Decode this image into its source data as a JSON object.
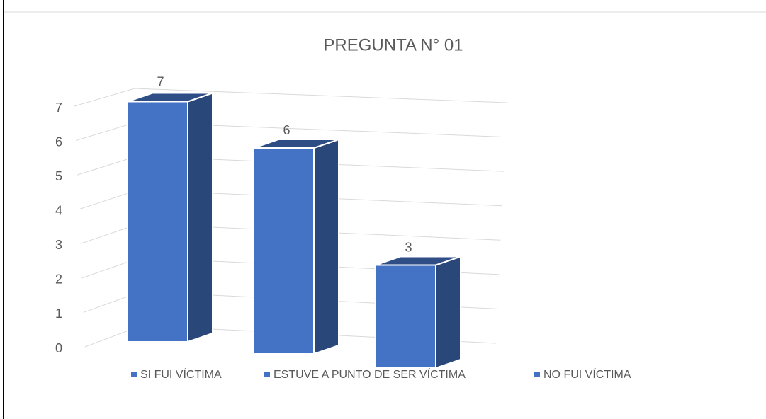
{
  "chart_data": {
    "type": "bar3d",
    "title": "PREGUNTA N° 01",
    "categories": [
      null
    ],
    "series": [
      {
        "name": "SI FUI VÍCTIMA",
        "color": "#4472c4",
        "values": [
          7
        ]
      },
      {
        "name": "ESTUVE A PUNTO DE SER VÍCTIMA",
        "color": "#4472c4",
        "values": [
          6
        ]
      },
      {
        "name": "NO FUI VÍCTIMA",
        "color": "#4472c4",
        "values": [
          3
        ]
      }
    ],
    "ylim": [
      0,
      7
    ],
    "yticks": [
      0,
      1,
      2,
      3,
      4,
      5,
      6,
      7
    ],
    "grid": true,
    "legend": "bottom"
  }
}
